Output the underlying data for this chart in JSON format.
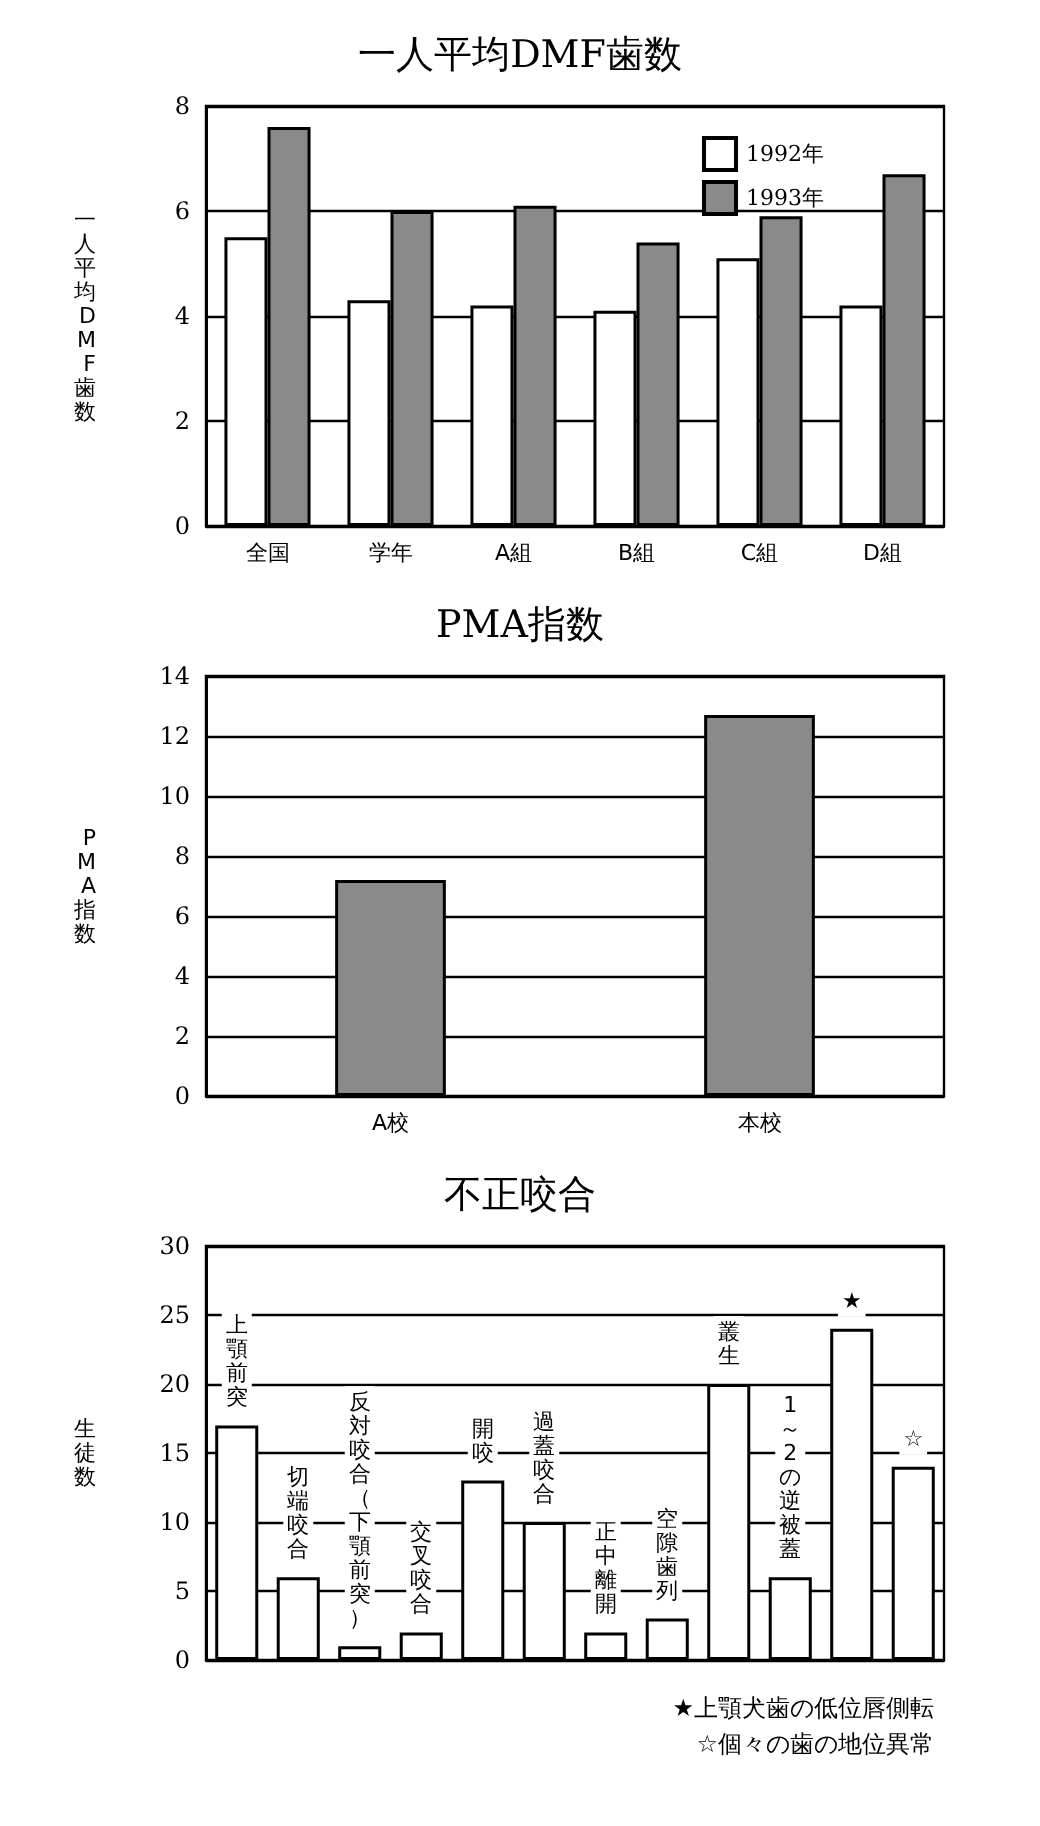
{
  "chart_data": [
    {
      "type": "bar",
      "title": "一人平均DMF歯数",
      "ylabel": "一人平均DMF歯数",
      "categories": [
        "全国",
        "学年",
        "A組",
        "B組",
        "C組",
        "D組"
      ],
      "series": [
        {
          "name": "1992年",
          "color": "#ffffff",
          "values": [
            5.5,
            4.3,
            4.2,
            4.1,
            5.1,
            4.2
          ]
        },
        {
          "name": "1993年",
          "color": "#8a8a8a",
          "values": [
            7.6,
            6.0,
            6.1,
            5.4,
            5.9,
            6.7
          ]
        }
      ],
      "ylim": [
        0,
        8
      ],
      "yticks": [
        0,
        2,
        4,
        6,
        8
      ],
      "grid": "y",
      "legend": "top right"
    },
    {
      "type": "bar",
      "title": "PMA指数",
      "ylabel": "PMA指数",
      "categories": [
        "A校",
        "本校"
      ],
      "values": [
        7.2,
        12.7
      ],
      "color": "#8a8a8a",
      "ylim": [
        0,
        14
      ],
      "yticks": [
        0,
        2,
        4,
        6,
        8,
        10,
        12,
        14
      ],
      "grid": "y"
    },
    {
      "type": "bar",
      "title": "不正咬合",
      "ylabel": "生徒数",
      "categories": [
        "上顎前突",
        "切端咬合",
        "反対咬合（下顎前突）",
        "交叉咬合",
        "開咬",
        "過蓋咬合",
        "正中離開",
        "空隙歯列",
        "叢生",
        "1～2の逆被蓋",
        "★",
        "☆"
      ],
      "values": [
        17,
        6,
        1,
        2,
        13,
        10,
        2,
        3,
        20,
        6,
        24,
        14
      ],
      "color": "#ffffff",
      "ylim": [
        0,
        30
      ],
      "yticks": [
        0,
        5,
        10,
        15,
        20,
        25,
        30
      ],
      "grid": "y",
      "annotations": [
        "★上顎犬歯の低位唇側転",
        "☆個々の歯の地位異常"
      ]
    }
  ]
}
